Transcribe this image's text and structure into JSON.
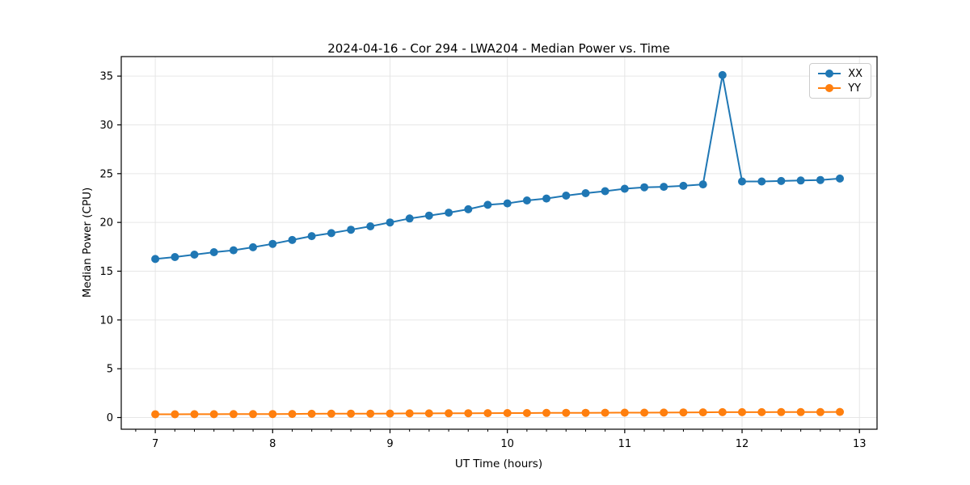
{
  "chart_data": {
    "type": "line",
    "title": "2024-04-16 - Cor 294 - LWA204 - Median Power vs. Time",
    "xlabel": "UT Time (hours)",
    "ylabel": "Median Power (CPU)",
    "xlim": [
      6.71,
      13.15
    ],
    "ylim": [
      -1.2,
      37.0
    ],
    "xticks": [
      7,
      8,
      9,
      10,
      11,
      12,
      13
    ],
    "yticks": [
      0,
      5,
      10,
      15,
      20,
      25,
      30,
      35
    ],
    "x_minor_step": 0.1666667,
    "grid": true,
    "legend_position": "upper right",
    "x": [
      7.0,
      7.167,
      7.333,
      7.5,
      7.667,
      7.833,
      8.0,
      8.167,
      8.333,
      8.5,
      8.667,
      8.833,
      9.0,
      9.167,
      9.333,
      9.5,
      9.667,
      9.833,
      10.0,
      10.167,
      10.333,
      10.5,
      10.667,
      10.833,
      11.0,
      11.167,
      11.333,
      11.5,
      11.667,
      11.833,
      12.0,
      12.167,
      12.333,
      12.5,
      12.667,
      12.833
    ],
    "series": [
      {
        "name": "XX",
        "color": "#1f77b4",
        "values": [
          16.25,
          16.45,
          16.7,
          16.95,
          17.15,
          17.45,
          17.8,
          18.2,
          18.6,
          18.9,
          19.25,
          19.6,
          20.0,
          20.4,
          20.7,
          21.0,
          21.35,
          21.8,
          21.95,
          22.25,
          22.45,
          22.75,
          23.0,
          23.2,
          23.45,
          23.6,
          23.65,
          23.75,
          23.9,
          35.1,
          24.2,
          24.2,
          24.25,
          24.3,
          24.35,
          24.5
        ]
      },
      {
        "name": "YY",
        "color": "#ff7f0e",
        "values": [
          0.33,
          0.33,
          0.34,
          0.34,
          0.35,
          0.35,
          0.36,
          0.37,
          0.38,
          0.39,
          0.4,
          0.4,
          0.41,
          0.42,
          0.42,
          0.43,
          0.44,
          0.45,
          0.46,
          0.46,
          0.47,
          0.48,
          0.48,
          0.49,
          0.5,
          0.5,
          0.51,
          0.52,
          0.53,
          0.55,
          0.55,
          0.55,
          0.56,
          0.56,
          0.56,
          0.57
        ]
      }
    ],
    "style": {
      "grid_color": "#e6e6e6",
      "spine_color": "#000000",
      "background": "#ffffff"
    }
  }
}
